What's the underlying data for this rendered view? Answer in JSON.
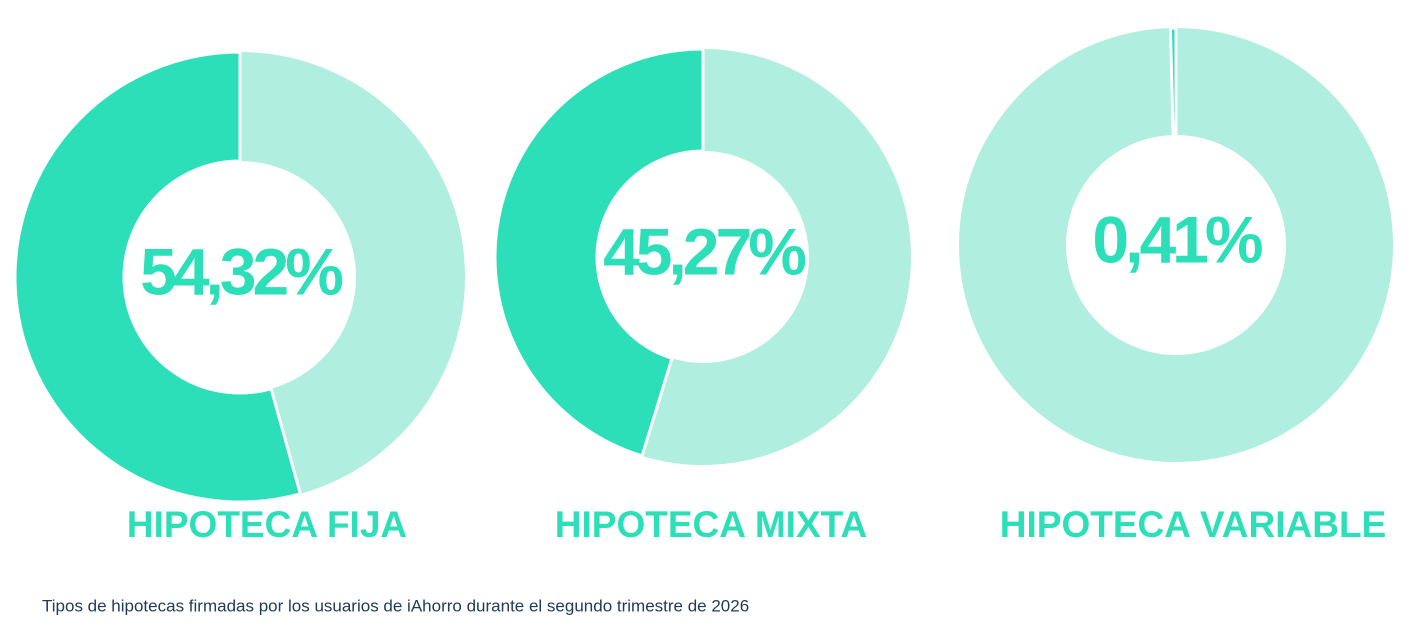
{
  "chart_data": [
    {
      "type": "donut",
      "title": "HIPOTECA FIJA",
      "values": [
        54.32
      ],
      "value_labels": [
        "54,32%"
      ],
      "color": "#2ddfb9",
      "track_color": "#b0eee0"
    },
    {
      "type": "donut",
      "title": "HIPOTECA MIXTA",
      "values": [
        45.27
      ],
      "value_labels": [
        "45,27%"
      ],
      "color": "#2ddfb9",
      "track_color": "#b0eee0"
    },
    {
      "type": "donut",
      "title": "HIPOTECA VARIABLE",
      "values": [
        0.41
      ],
      "value_labels": [
        "0,41%"
      ],
      "color": "#2ddfb9",
      "track_color": "#b0eee0"
    }
  ],
  "caption": "Tipos de hipotecas firmadas por los usuarios de iAhorro durante el segundo trimestre de 2026"
}
